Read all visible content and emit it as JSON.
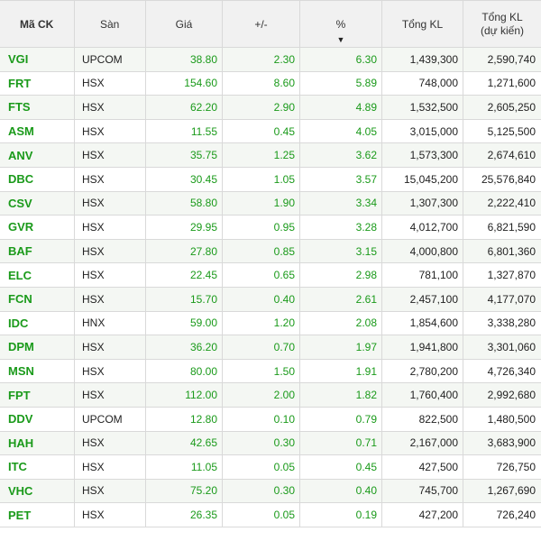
{
  "header": {
    "ma_ck": "Mã CK",
    "san": "Sàn",
    "gia": "Giá",
    "thay_doi": "+/-",
    "phan_tram": "%",
    "sort_arrow": "▼",
    "tong_kl": "Tổng KL",
    "tong_kl_du_kien_1": "Tổng KL",
    "tong_kl_du_kien_2": "(dự kiến)"
  },
  "rows": [
    {
      "ma": "VGI",
      "san": "UPCOM",
      "gia": "38.80",
      "chg": "2.30",
      "pct": "6.30",
      "kl": "1,439,300",
      "kldk": "2,590,740"
    },
    {
      "ma": "FRT",
      "san": "HSX",
      "gia": "154.60",
      "chg": "8.60",
      "pct": "5.89",
      "kl": "748,000",
      "kldk": "1,271,600"
    },
    {
      "ma": "FTS",
      "san": "HSX",
      "gia": "62.20",
      "chg": "2.90",
      "pct": "4.89",
      "kl": "1,532,500",
      "kldk": "2,605,250"
    },
    {
      "ma": "ASM",
      "san": "HSX",
      "gia": "11.55",
      "chg": "0.45",
      "pct": "4.05",
      "kl": "3,015,000",
      "kldk": "5,125,500"
    },
    {
      "ma": "ANV",
      "san": "HSX",
      "gia": "35.75",
      "chg": "1.25",
      "pct": "3.62",
      "kl": "1,573,300",
      "kldk": "2,674,610"
    },
    {
      "ma": "DBC",
      "san": "HSX",
      "gia": "30.45",
      "chg": "1.05",
      "pct": "3.57",
      "kl": "15,045,200",
      "kldk": "25,576,840"
    },
    {
      "ma": "CSV",
      "san": "HSX",
      "gia": "58.80",
      "chg": "1.90",
      "pct": "3.34",
      "kl": "1,307,300",
      "kldk": "2,222,410"
    },
    {
      "ma": "GVR",
      "san": "HSX",
      "gia": "29.95",
      "chg": "0.95",
      "pct": "3.28",
      "kl": "4,012,700",
      "kldk": "6,821,590"
    },
    {
      "ma": "BAF",
      "san": "HSX",
      "gia": "27.80",
      "chg": "0.85",
      "pct": "3.15",
      "kl": "4,000,800",
      "kldk": "6,801,360"
    },
    {
      "ma": "ELC",
      "san": "HSX",
      "gia": "22.45",
      "chg": "0.65",
      "pct": "2.98",
      "kl": "781,100",
      "kldk": "1,327,870"
    },
    {
      "ma": "FCN",
      "san": "HSX",
      "gia": "15.70",
      "chg": "0.40",
      "pct": "2.61",
      "kl": "2,457,100",
      "kldk": "4,177,070"
    },
    {
      "ma": "IDC",
      "san": "HNX",
      "gia": "59.00",
      "chg": "1.20",
      "pct": "2.08",
      "kl": "1,854,600",
      "kldk": "3,338,280"
    },
    {
      "ma": "DPM",
      "san": "HSX",
      "gia": "36.20",
      "chg": "0.70",
      "pct": "1.97",
      "kl": "1,941,800",
      "kldk": "3,301,060"
    },
    {
      "ma": "MSN",
      "san": "HSX",
      "gia": "80.00",
      "chg": "1.50",
      "pct": "1.91",
      "kl": "2,780,200",
      "kldk": "4,726,340"
    },
    {
      "ma": "FPT",
      "san": "HSX",
      "gia": "112.00",
      "chg": "2.00",
      "pct": "1.82",
      "kl": "1,760,400",
      "kldk": "2,992,680"
    },
    {
      "ma": "DDV",
      "san": "UPCOM",
      "gia": "12.80",
      "chg": "0.10",
      "pct": "0.79",
      "kl": "822,500",
      "kldk": "1,480,500"
    },
    {
      "ma": "HAH",
      "san": "HSX",
      "gia": "42.65",
      "chg": "0.30",
      "pct": "0.71",
      "kl": "2,167,000",
      "kldk": "3,683,900"
    },
    {
      "ma": "ITC",
      "san": "HSX",
      "gia": "11.05",
      "chg": "0.05",
      "pct": "0.45",
      "kl": "427,500",
      "kldk": "726,750"
    },
    {
      "ma": "VHC",
      "san": "HSX",
      "gia": "75.20",
      "chg": "0.30",
      "pct": "0.40",
      "kl": "745,700",
      "kldk": "1,267,690"
    },
    {
      "ma": "PET",
      "san": "HSX",
      "gia": "26.35",
      "chg": "0.05",
      "pct": "0.19",
      "kl": "427,200",
      "kldk": "726,240"
    }
  ],
  "colors": {
    "up_green": "#1a9a1a",
    "header_bg": "#f1f1f1",
    "stripe_bg": "#f4f7f3"
  }
}
